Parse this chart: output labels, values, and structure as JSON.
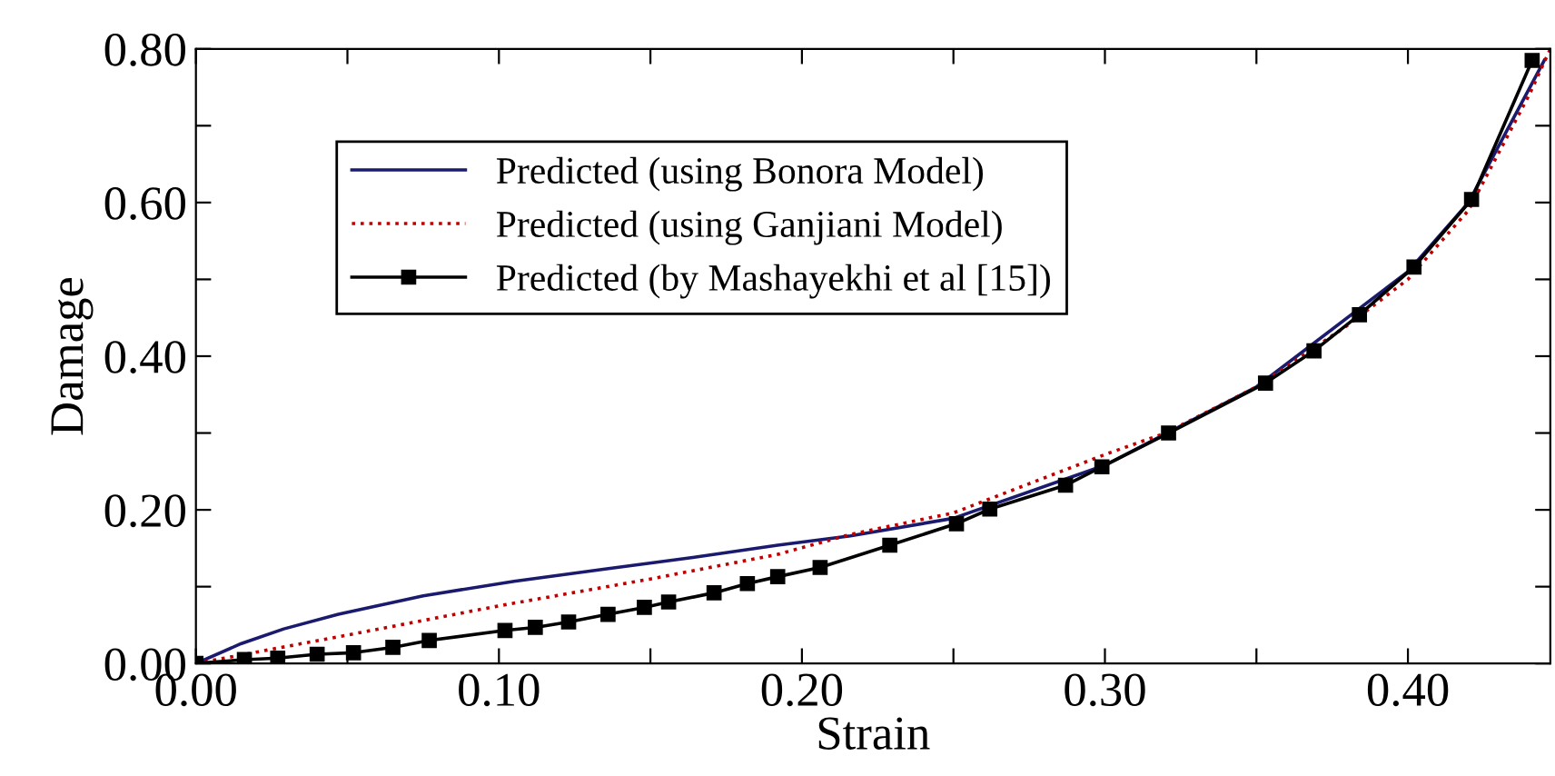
{
  "chart_data": {
    "type": "line",
    "xlabel": "Strain",
    "ylabel": "Damage",
    "xlim": [
      0,
      0.447
    ],
    "ylim": [
      0,
      0.8
    ],
    "xticks": [
      {
        "value": 0,
        "label": "0.00"
      },
      {
        "value": 0.05,
        "label": null
      },
      {
        "value": 0.1,
        "label": "0.10"
      },
      {
        "value": 0.15,
        "label": null
      },
      {
        "value": 0.2,
        "label": "0.20"
      },
      {
        "value": 0.25,
        "label": null
      },
      {
        "value": 0.3,
        "label": "0.30"
      },
      {
        "value": 0.35,
        "label": null
      },
      {
        "value": 0.4,
        "label": "0.40"
      }
    ],
    "yticks": [
      {
        "value": 0,
        "label": "0.00"
      },
      {
        "value": 0.1,
        "label": null
      },
      {
        "value": 0.2,
        "label": "0.20"
      },
      {
        "value": 0.3,
        "label": null
      },
      {
        "value": 0.4,
        "label": "0.40"
      },
      {
        "value": 0.5,
        "label": null
      },
      {
        "value": 0.6,
        "label": "0.60"
      },
      {
        "value": 0.7,
        "label": null
      },
      {
        "value": 0.8,
        "label": "0.80"
      }
    ],
    "grid": false,
    "legend": "top left",
    "series": [
      {
        "name": "Predicted (using Bonora Model)",
        "color": "#1a1a6e",
        "marker": "none",
        "line_style": "solid",
        "x": [
          0,
          0.015,
          0.029,
          0.047,
          0.075,
          0.105,
          0.135,
          0.164,
          0.192,
          0.216,
          0.25,
          0.3,
          0.35,
          0.4,
          0.42,
          0.445
        ],
        "values": [
          0,
          0.026,
          0.045,
          0.064,
          0.088,
          0.107,
          0.123,
          0.138,
          0.154,
          0.166,
          0.189,
          0.258,
          0.36,
          0.51,
          0.6,
          0.785
        ]
      },
      {
        "name": "Predicted (using Ganjiani Model)",
        "color": "#c00000",
        "marker": "none",
        "line_style": "dotted",
        "x": [
          0,
          0.05,
          0.1,
          0.15,
          0.192,
          0.216,
          0.25,
          0.3,
          0.32,
          0.35,
          0.38,
          0.4,
          0.42,
          0.44,
          0.447
        ],
        "values": [
          0,
          0.037,
          0.075,
          0.11,
          0.142,
          0.168,
          0.196,
          0.272,
          0.3,
          0.36,
          0.44,
          0.5,
          0.59,
          0.74,
          0.8
        ]
      },
      {
        "name": "Predicted (by Mashayekhi et al [15])",
        "color": "#000000",
        "marker": "square",
        "line_style": "solid",
        "x": [
          0,
          0.016,
          0.027,
          0.04,
          0.052,
          0.065,
          0.077,
          0.102,
          0.112,
          0.123,
          0.136,
          0.148,
          0.156,
          0.171,
          0.182,
          0.192,
          0.206,
          0.229,
          0.251,
          0.262,
          0.287,
          0.299,
          0.321,
          0.353,
          0.369,
          0.384,
          0.402,
          0.421,
          0.441
        ],
        "values": [
          0,
          0.005,
          0.007,
          0.012,
          0.014,
          0.021,
          0.03,
          0.043,
          0.047,
          0.054,
          0.064,
          0.073,
          0.08,
          0.092,
          0.104,
          0.113,
          0.125,
          0.154,
          0.182,
          0.201,
          0.232,
          0.256,
          0.3,
          0.365,
          0.407,
          0.454,
          0.516,
          0.604,
          0.785
        ]
      }
    ]
  }
}
